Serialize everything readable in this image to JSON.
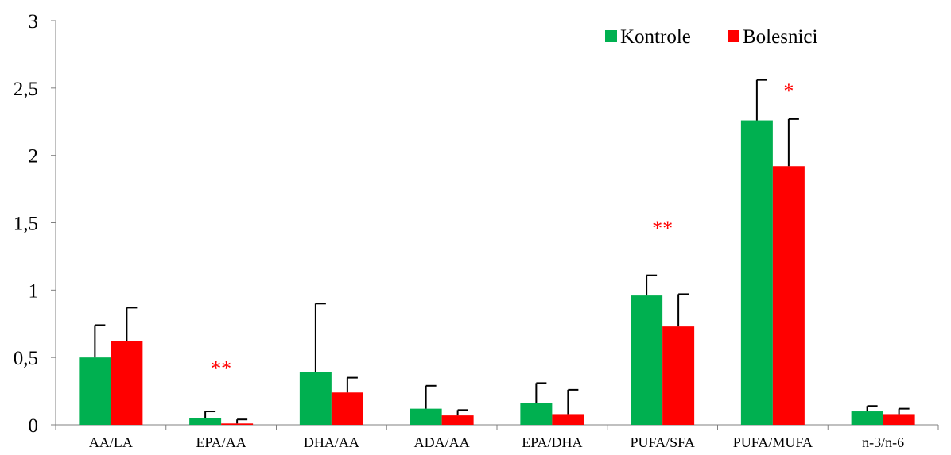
{
  "chart_data": {
    "type": "bar",
    "categories": [
      "AA/LA",
      "EPA/AA",
      "DHA/AA",
      "ADA/AA",
      "EPA/DHA",
      "PUFA/SFA",
      "PUFA/MUFA",
      "n-3/n-6"
    ],
    "series": [
      {
        "name": "Kontrole",
        "color": "#00b050",
        "values": [
          0.5,
          0.05,
          0.39,
          0.12,
          0.16,
          0.96,
          2.26,
          0.1
        ],
        "error": [
          0.24,
          0.05,
          0.51,
          0.17,
          0.15,
          0.15,
          0.3,
          0.04
        ]
      },
      {
        "name": "Bolesnici",
        "color": "#ff0000",
        "values": [
          0.62,
          0.01,
          0.24,
          0.07,
          0.08,
          0.73,
          1.92,
          0.08
        ],
        "error": [
          0.25,
          0.03,
          0.11,
          0.04,
          0.18,
          0.24,
          0.35,
          0.04
        ]
      }
    ],
    "significance": [
      {
        "category": "EPA/AA",
        "label": "**",
        "y": 0.44
      },
      {
        "category": "PUFA/SFA",
        "label": "**",
        "y": 1.48
      },
      {
        "category": "PUFA/MUFA",
        "label": "*",
        "y": 2.5
      }
    ],
    "yticks": [
      "0",
      "0,5",
      "1",
      "1,5",
      "2",
      "2,5",
      "3"
    ],
    "ylim": [
      0,
      3
    ],
    "grid": false,
    "legend_position": "top-right",
    "significance_color": "#ff0000",
    "axis_color": "#808080"
  }
}
